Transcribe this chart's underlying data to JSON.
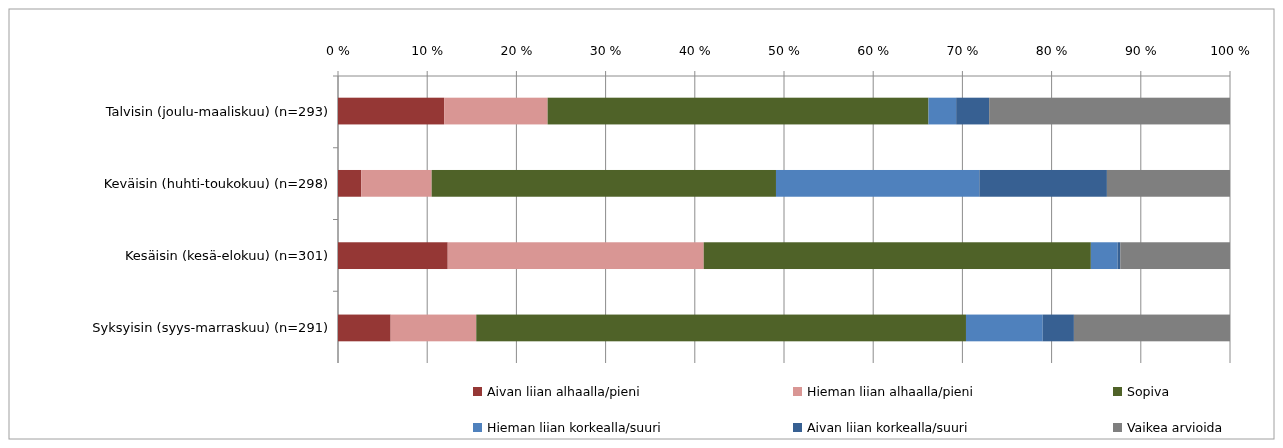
{
  "chart_data": {
    "type": "bar",
    "orientation": "horizontal",
    "stacked": true,
    "categories": [
      "Talvisin (joulu-maaliskuu)  (n=293)",
      "Keväisin (huhti-toukokuu)  (n=298)",
      "Kesäisin (kesä-elokuu) (n=301)",
      "Syksyisin (syys-marraskuu) (n=291)"
    ],
    "series": [
      {
        "name": "Aivan liian alhaalla/pieni",
        "color": "#953735",
        "values": [
          11.9,
          2.6,
          12.3,
          5.9
        ]
      },
      {
        "name": "Hieman liian alhaalla/pieni",
        "color": "#d99694",
        "values": [
          11.6,
          7.9,
          28.7,
          9.6
        ]
      },
      {
        "name": "Sopiva",
        "color": "#4f6228",
        "values": [
          42.7,
          38.6,
          43.4,
          54.9
        ]
      },
      {
        "name": "Hieman liian korkealla/suuri",
        "color": "#4f81bd",
        "values": [
          3.1,
          22.8,
          3.0,
          8.6
        ]
      },
      {
        "name": "Aivan liian korkealla/suuri",
        "color": "#376092",
        "values": [
          3.7,
          14.3,
          0.3,
          3.5
        ]
      },
      {
        "name": "Vaikea arvioida",
        "color": "#7f7f7f",
        "values": [
          27.0,
          13.8,
          12.3,
          17.5
        ]
      }
    ],
    "xlim": [
      0,
      100
    ],
    "xticks": [
      {
        "value": 0,
        "label": "0 %"
      },
      {
        "value": 10,
        "label": "10 %"
      },
      {
        "value": 20,
        "label": "20 %"
      },
      {
        "value": 30,
        "label": "30 %"
      },
      {
        "value": 40,
        "label": "40 %"
      },
      {
        "value": 50,
        "label": "50 %"
      },
      {
        "value": 60,
        "label": "60 %"
      },
      {
        "value": 70,
        "label": "70 %"
      },
      {
        "value": 80,
        "label": "80 %"
      },
      {
        "value": 90,
        "label": "90 %"
      },
      {
        "value": 100,
        "label": "100 %"
      }
    ],
    "grid": "x",
    "legend": "bottom"
  }
}
